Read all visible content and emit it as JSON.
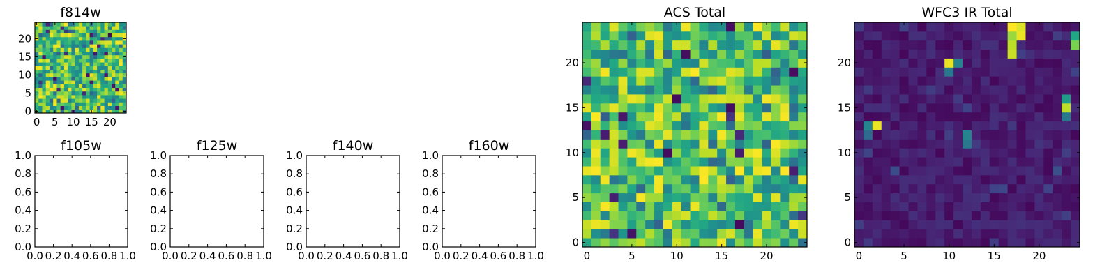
{
  "chart_data": [
    {
      "id": "f814w",
      "type": "heatmap",
      "title": "f814w",
      "colormap": "viridis",
      "grid_size": [
        25,
        25
      ],
      "xlim": [
        -0.5,
        24.5
      ],
      "ylim": [
        -0.5,
        24.5
      ],
      "xticks": [
        0,
        5,
        10,
        15,
        20
      ],
      "yticks": [
        0,
        5,
        10,
        15,
        20
      ],
      "xticklabels": [
        "0",
        "5",
        "10",
        "15",
        "20"
      ],
      "yticklabels": [
        "0",
        "5",
        "10",
        "15",
        "20"
      ],
      "values_description_range": [
        0,
        1
      ],
      "random_seed": 814,
      "value_distribution": "high"
    },
    {
      "id": "f105w",
      "type": "empty",
      "title": "f105w",
      "xlim": [
        0,
        1
      ],
      "ylim": [
        0,
        1
      ],
      "xticks": [
        0,
        0.2,
        0.4,
        0.6,
        0.8,
        1.0
      ],
      "yticks": [
        0,
        0.2,
        0.4,
        0.6,
        0.8,
        1.0
      ],
      "xticklabels": [
        "0.0",
        "0.2",
        "0.4",
        "0.6",
        "0.8",
        "1.0"
      ],
      "yticklabels": [
        "0.0",
        "0.2",
        "0.4",
        "0.6",
        "0.8",
        "1.0"
      ]
    },
    {
      "id": "f125w",
      "type": "empty",
      "title": "f125w",
      "xlim": [
        0,
        1
      ],
      "ylim": [
        0,
        1
      ],
      "xticks": [
        0,
        0.2,
        0.4,
        0.6,
        0.8,
        1.0
      ],
      "yticks": [
        0,
        0.2,
        0.4,
        0.6,
        0.8,
        1.0
      ],
      "xticklabels": [
        "0.0",
        "0.2",
        "0.4",
        "0.6",
        "0.8",
        "1.0"
      ],
      "yticklabels": [
        "0.0",
        "0.2",
        "0.4",
        "0.6",
        "0.8",
        "1.0"
      ]
    },
    {
      "id": "f140w",
      "type": "empty",
      "title": "f140w",
      "xlim": [
        0,
        1
      ],
      "ylim": [
        0,
        1
      ],
      "xticks": [
        0,
        0.2,
        0.4,
        0.6,
        0.8,
        1.0
      ],
      "yticks": [
        0,
        0.2,
        0.4,
        0.6,
        0.8,
        1.0
      ],
      "xticklabels": [
        "0.0",
        "0.2",
        "0.4",
        "0.6",
        "0.8",
        "1.0"
      ],
      "yticklabels": [
        "0.0",
        "0.2",
        "0.4",
        "0.6",
        "0.8",
        "1.0"
      ]
    },
    {
      "id": "f160w",
      "type": "empty",
      "title": "f160w",
      "xlim": [
        0,
        1
      ],
      "ylim": [
        0,
        1
      ],
      "xticks": [
        0,
        0.2,
        0.4,
        0.6,
        0.8,
        1.0
      ],
      "yticks": [
        0,
        0.2,
        0.4,
        0.6,
        0.8,
        1.0
      ],
      "xticklabels": [
        "0.0",
        "0.2",
        "0.4",
        "0.6",
        "0.8",
        "1.0"
      ],
      "yticklabels": [
        "0.0",
        "0.2",
        "0.4",
        "0.6",
        "0.8",
        "1.0"
      ]
    },
    {
      "id": "acs-total",
      "type": "heatmap",
      "title": "ACS Total",
      "colormap": "viridis",
      "grid_size": [
        25,
        25
      ],
      "xlim": [
        -0.5,
        24.5
      ],
      "ylim": [
        -0.5,
        24.5
      ],
      "xticks": [
        0,
        5,
        10,
        15,
        20
      ],
      "yticks": [
        0,
        5,
        10,
        15,
        20
      ],
      "xticklabels": [
        "0",
        "5",
        "10",
        "15",
        "20"
      ],
      "yticklabels": [
        "0",
        "5",
        "10",
        "15",
        "20"
      ],
      "random_seed": 77,
      "value_distribution": "high"
    },
    {
      "id": "wfc3-ir-total",
      "type": "heatmap",
      "title": "WFC3 IR Total",
      "colormap": "viridis",
      "grid_size": [
        25,
        25
      ],
      "xlim": [
        -0.5,
        24.5
      ],
      "ylim": [
        -0.5,
        24.5
      ],
      "xticks": [
        0,
        5,
        10,
        15,
        20
      ],
      "yticks": [
        0,
        5,
        10,
        15,
        20
      ],
      "xticklabels": [
        "0",
        "5",
        "10",
        "15",
        "20"
      ],
      "yticklabels": [
        "0",
        "5",
        "10",
        "15",
        "20"
      ],
      "random_seed": 316,
      "value_distribution": "low",
      "hotspots": [
        {
          "x": 17,
          "y": 24,
          "value": 1.0
        },
        {
          "x": 18,
          "y": 24,
          "value": 0.95
        },
        {
          "x": 18,
          "y": 23,
          "value": 0.97
        },
        {
          "x": 17,
          "y": 23,
          "value": 0.85
        },
        {
          "x": 17,
          "y": 22,
          "value": 0.9
        },
        {
          "x": 17,
          "y": 21,
          "value": 0.92
        },
        {
          "x": 24,
          "y": 23,
          "value": 0.6
        },
        {
          "x": 24,
          "y": 22,
          "value": 0.8
        },
        {
          "x": 10,
          "y": 20,
          "value": 0.97
        },
        {
          "x": 11,
          "y": 20,
          "value": 0.45
        },
        {
          "x": 10,
          "y": 19,
          "value": 0.4
        },
        {
          "x": 23,
          "y": 16,
          "value": 0.55
        },
        {
          "x": 23,
          "y": 15,
          "value": 0.9
        },
        {
          "x": 23,
          "y": 14,
          "value": 0.4
        },
        {
          "x": 2,
          "y": 13,
          "value": 0.97
        },
        {
          "x": 1,
          "y": 13,
          "value": 0.45
        },
        {
          "x": 1,
          "y": 12,
          "value": 0.35
        },
        {
          "x": 12,
          "y": 12,
          "value": 0.45
        },
        {
          "x": 12,
          "y": 11,
          "value": 0.4
        }
      ]
    }
  ]
}
